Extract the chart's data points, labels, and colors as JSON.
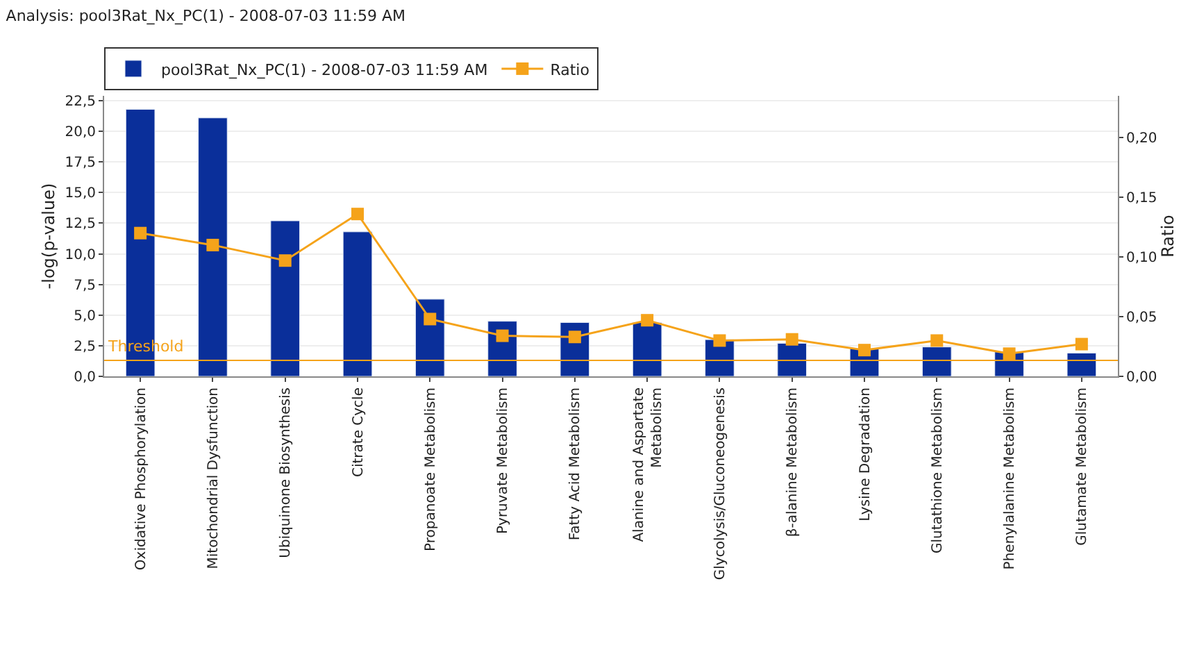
{
  "chart_data": {
    "type": "bar",
    "title": "Analysis: pool3Rat_Nx_PC(1) - 2008-07-03 11:59 AM",
    "categories": [
      "Oxidative Phosphorylation",
      "Mitochondrial Dysfunction",
      "Ubiquinone Biosynthesis",
      "Citrate Cycle",
      "Propanoate Metabolism",
      "Pyruvate Metabolism",
      "Fatty Acid Metabolism",
      "Alanine and Aspartate Metabolism",
      "Glycolysis/Gluconeogenesis",
      "β-alanine Metabolism",
      "Lysine Degradation",
      "Glutathione Metabolism",
      "Phenylalanine Metabolism",
      "Glutamate Metabolism"
    ],
    "series": [
      {
        "name": "pool3Rat_Nx_PC(1) - 2008-07-03 11:59 AM",
        "color": "#0a2f9a",
        "values": [
          21.8,
          21.1,
          12.7,
          11.8,
          6.3,
          4.5,
          4.4,
          4.4,
          3.0,
          2.7,
          2.3,
          2.4,
          2.0,
          1.9
        ]
      },
      {
        "name": "Ratio",
        "color": "#f5a31a",
        "type": "line",
        "axis": "y2",
        "values": [
          0.12,
          0.11,
          0.097,
          0.136,
          0.048,
          0.034,
          0.033,
          0.047,
          0.03,
          0.031,
          0.022,
          0.03,
          0.019,
          0.027
        ]
      }
    ],
    "ylabel": "-log(p-value)",
    "y2label": "Ratio",
    "ylim": [
      0,
      22.9
    ],
    "yticks": [
      {
        "value": 0,
        "label": "0,0"
      },
      {
        "value": 2.5,
        "label": "2,5"
      },
      {
        "value": 5,
        "label": "5,0"
      },
      {
        "value": 7.5,
        "label": "7,5"
      },
      {
        "value": 10,
        "label": "10,0"
      },
      {
        "value": 12.5,
        "label": "12,5"
      },
      {
        "value": 15,
        "label": "15,0"
      },
      {
        "value": 17.5,
        "label": "17,5"
      },
      {
        "value": 20,
        "label": "20,0"
      },
      {
        "value": 22.5,
        "label": "22,5"
      }
    ],
    "y2lim": [
      0,
      0.235
    ],
    "y2ticks": [
      {
        "value": 0,
        "label": "0,00"
      },
      {
        "value": 0.05,
        "label": "0,05"
      },
      {
        "value": 0.1,
        "label": "0,10"
      },
      {
        "value": 0.15,
        "label": "0,15"
      },
      {
        "value": 0.2,
        "label": "0,20"
      }
    ],
    "ref_lines": [
      {
        "axis": "y",
        "value": 1.3,
        "label": "Threshold",
        "color": "#f5a31a"
      }
    ],
    "grid": "y",
    "legend": "top left",
    "marker": "square",
    "line_style": "solid"
  }
}
